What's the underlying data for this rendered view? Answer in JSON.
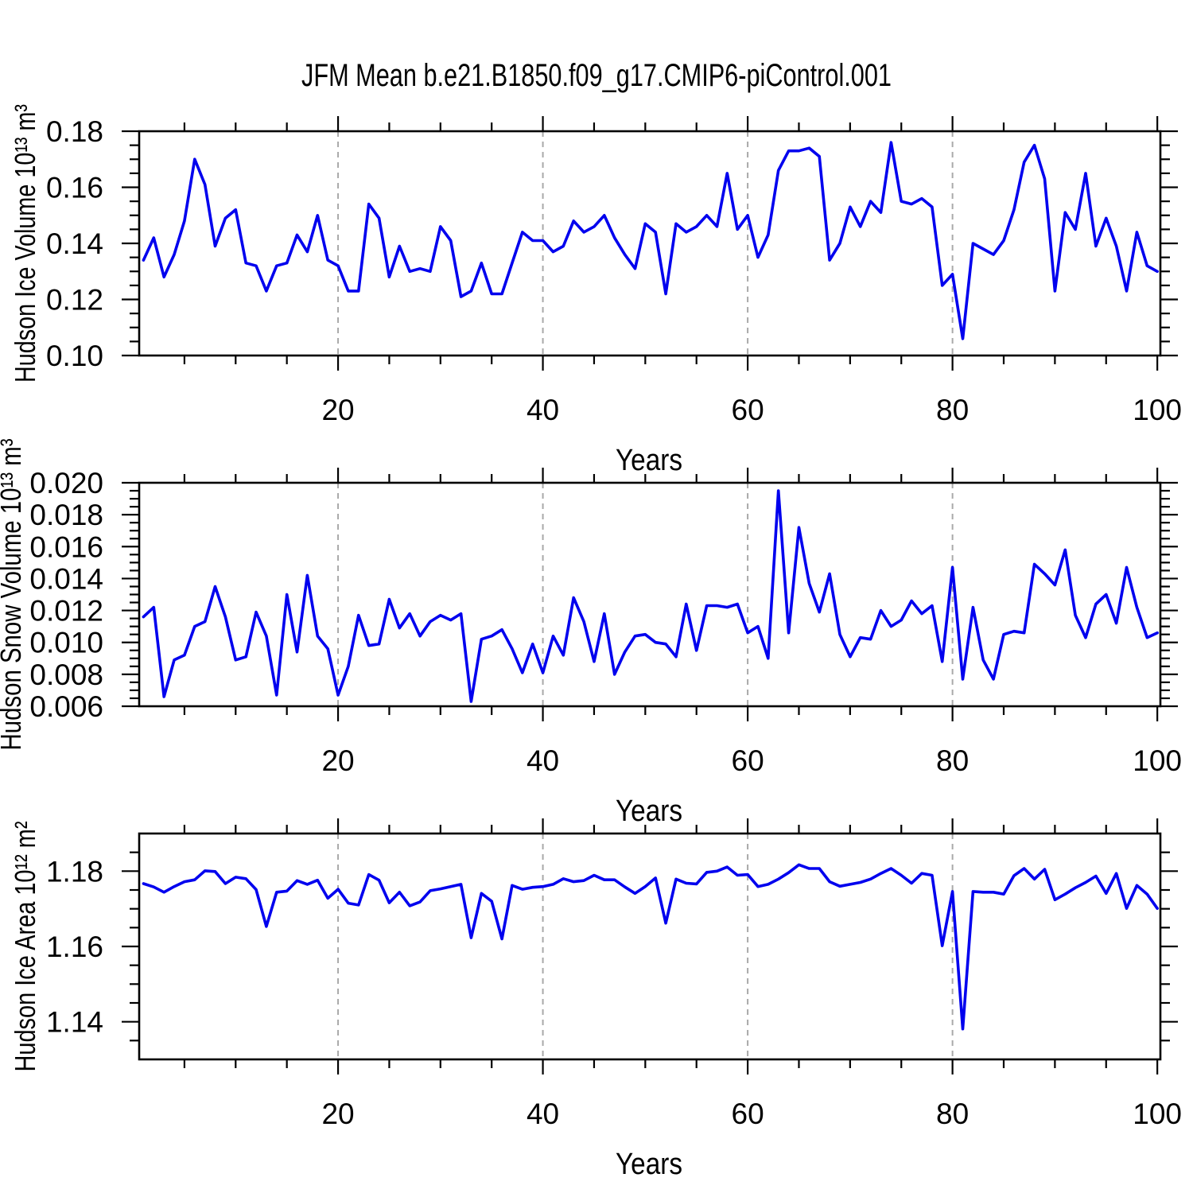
{
  "title": "JFM Mean b.e21.B1850.f09_g17.CMIP6-piControl.001",
  "colors": {
    "line": "#0000ee",
    "grid": "#a9a9a9",
    "axis": "#000000",
    "background": "#ffffff"
  },
  "chart_data": {
    "type": "line",
    "xlabel": "Years",
    "x_major_ticks": [
      20,
      40,
      60,
      80,
      100
    ],
    "x_minor_step": 5,
    "grid_x": [
      20,
      40,
      60,
      80
    ],
    "xlim": [
      0.58,
      100.3
    ],
    "grid": "vertical-dashed",
    "legend": "none",
    "x": [
      1,
      2,
      3,
      4,
      5,
      6,
      7,
      8,
      9,
      10,
      11,
      12,
      13,
      14,
      15,
      16,
      17,
      18,
      19,
      20,
      21,
      22,
      23,
      24,
      25,
      26,
      27,
      28,
      29,
      30,
      31,
      32,
      33,
      34,
      35,
      36,
      37,
      38,
      39,
      40,
      41,
      42,
      43,
      44,
      45,
      46,
      47,
      48,
      49,
      50,
      51,
      52,
      53,
      54,
      55,
      56,
      57,
      58,
      59,
      60,
      61,
      62,
      63,
      64,
      65,
      66,
      67,
      68,
      69,
      70,
      71,
      72,
      73,
      74,
      75,
      76,
      77,
      78,
      79,
      80,
      81,
      82,
      83,
      84,
      85,
      86,
      87,
      88,
      89,
      90,
      91,
      92,
      93,
      94,
      95,
      96,
      97,
      98,
      99,
      100
    ],
    "panels": [
      {
        "name": "hudson-ice-volume",
        "ylabel": "Hudson Ice Volume 10¹³ m³",
        "ylim": [
          0.1,
          0.18
        ],
        "y_major_ticks": [
          0.1,
          0.12,
          0.14,
          0.16,
          0.18
        ],
        "y_tick_labels": [
          "0.10",
          "0.12",
          "0.14",
          "0.16",
          "0.18"
        ],
        "y_minor_step": 0.005,
        "values": [
          0.134,
          0.142,
          0.128,
          0.136,
          0.148,
          0.17,
          0.161,
          0.139,
          0.149,
          0.152,
          0.133,
          0.132,
          0.123,
          0.132,
          0.133,
          0.143,
          0.137,
          0.15,
          0.134,
          0.132,
          0.123,
          0.123,
          0.154,
          0.149,
          0.128,
          0.139,
          0.13,
          0.131,
          0.13,
          0.146,
          0.141,
          0.121,
          0.123,
          0.133,
          0.122,
          0.122,
          0.133,
          0.144,
          0.141,
          0.141,
          0.137,
          0.139,
          0.148,
          0.144,
          0.146,
          0.15,
          0.142,
          0.136,
          0.131,
          0.147,
          0.144,
          0.122,
          0.147,
          0.144,
          0.146,
          0.15,
          0.146,
          0.165,
          0.145,
          0.15,
          0.135,
          0.143,
          0.166,
          0.173,
          0.173,
          0.174,
          0.171,
          0.134,
          0.14,
          0.153,
          0.146,
          0.155,
          0.151,
          0.176,
          0.155,
          0.154,
          0.156,
          0.153,
          0.125,
          0.129,
          0.106,
          0.14,
          0.138,
          0.136,
          0.141,
          0.152,
          0.169,
          0.175,
          0.163,
          0.123,
          0.151,
          0.145,
          0.165,
          0.139,
          0.149,
          0.139,
          0.123,
          0.144,
          0.132,
          0.13
        ]
      },
      {
        "name": "hudson-snow-volume",
        "ylabel": "Hudson Snow Volume 10¹³ m³",
        "ylim": [
          0.006,
          0.02
        ],
        "y_major_ticks": [
          0.006,
          0.008,
          0.01,
          0.012,
          0.014,
          0.016,
          0.018,
          0.02
        ],
        "y_tick_labels": [
          "0.006",
          "0.008",
          "0.010",
          "0.012",
          "0.014",
          "0.016",
          "0.018",
          "0.020"
        ],
        "y_minor_step": 0.0005,
        "values": [
          0.0116,
          0.0122,
          0.0066,
          0.0089,
          0.0092,
          0.011,
          0.0113,
          0.0135,
          0.0116,
          0.0089,
          0.0091,
          0.0119,
          0.0104,
          0.0067,
          0.013,
          0.0094,
          0.0142,
          0.0104,
          0.0096,
          0.0067,
          0.0085,
          0.0117,
          0.0098,
          0.0099,
          0.0127,
          0.0109,
          0.0118,
          0.0104,
          0.0113,
          0.0117,
          0.0114,
          0.0118,
          0.0063,
          0.0102,
          0.0104,
          0.0108,
          0.0096,
          0.0081,
          0.0099,
          0.0081,
          0.0104,
          0.0092,
          0.0128,
          0.0113,
          0.0088,
          0.0118,
          0.008,
          0.0094,
          0.0104,
          0.0105,
          0.01,
          0.0099,
          0.0091,
          0.0124,
          0.0095,
          0.0123,
          0.0123,
          0.0122,
          0.0124,
          0.0106,
          0.011,
          0.009,
          0.0195,
          0.0106,
          0.0172,
          0.0137,
          0.0119,
          0.0143,
          0.0105,
          0.0091,
          0.0103,
          0.0102,
          0.012,
          0.011,
          0.0114,
          0.0126,
          0.0118,
          0.0123,
          0.0088,
          0.0147,
          0.0077,
          0.0122,
          0.0089,
          0.0077,
          0.0105,
          0.0107,
          0.0106,
          0.0149,
          0.0143,
          0.0136,
          0.0158,
          0.0117,
          0.0103,
          0.0124,
          0.013,
          0.0112,
          0.0147,
          0.0122,
          0.0103,
          0.0106
        ]
      },
      {
        "name": "hudson-ice-area",
        "ylabel": "Hudson Ice Area 10¹² m²",
        "ylim": [
          1.13,
          1.19
        ],
        "y_major_ticks": [
          1.14,
          1.16,
          1.18
        ],
        "y_tick_labels": [
          "1.14",
          "1.16",
          "1.18"
        ],
        "y_minor_step": 0.005,
        "values": [
          1.1767,
          1.1758,
          1.1744,
          1.1759,
          1.1772,
          1.1777,
          1.1801,
          1.1799,
          1.1767,
          1.1784,
          1.178,
          1.1751,
          1.1653,
          1.1744,
          1.1747,
          1.1775,
          1.1765,
          1.1776,
          1.1728,
          1.1752,
          1.1715,
          1.171,
          1.1791,
          1.1776,
          1.1716,
          1.1744,
          1.1708,
          1.1718,
          1.1748,
          1.1753,
          1.1759,
          1.1765,
          1.1623,
          1.1741,
          1.172,
          1.162,
          1.1762,
          1.1752,
          1.1757,
          1.1759,
          1.1765,
          1.178,
          1.1772,
          1.1775,
          1.1789,
          1.1777,
          1.1777,
          1.1758,
          1.1741,
          1.1759,
          1.1782,
          1.1662,
          1.1779,
          1.1768,
          1.1766,
          1.1797,
          1.18,
          1.1811,
          1.1789,
          1.1791,
          1.1759,
          1.1765,
          1.1779,
          1.1796,
          1.1817,
          1.1807,
          1.1807,
          1.1772,
          1.176,
          1.1765,
          1.177,
          1.1779,
          1.1794,
          1.1807,
          1.1789,
          1.1768,
          1.1794,
          1.1789,
          1.1602,
          1.1746,
          1.1381,
          1.1746,
          1.1744,
          1.1744,
          1.1739,
          1.1788,
          1.1807,
          1.1779,
          1.1805,
          1.1724,
          1.1739,
          1.1756,
          1.177,
          1.1787,
          1.1741,
          1.1794,
          1.1701,
          1.1762,
          1.1739,
          1.1701
        ]
      }
    ]
  }
}
